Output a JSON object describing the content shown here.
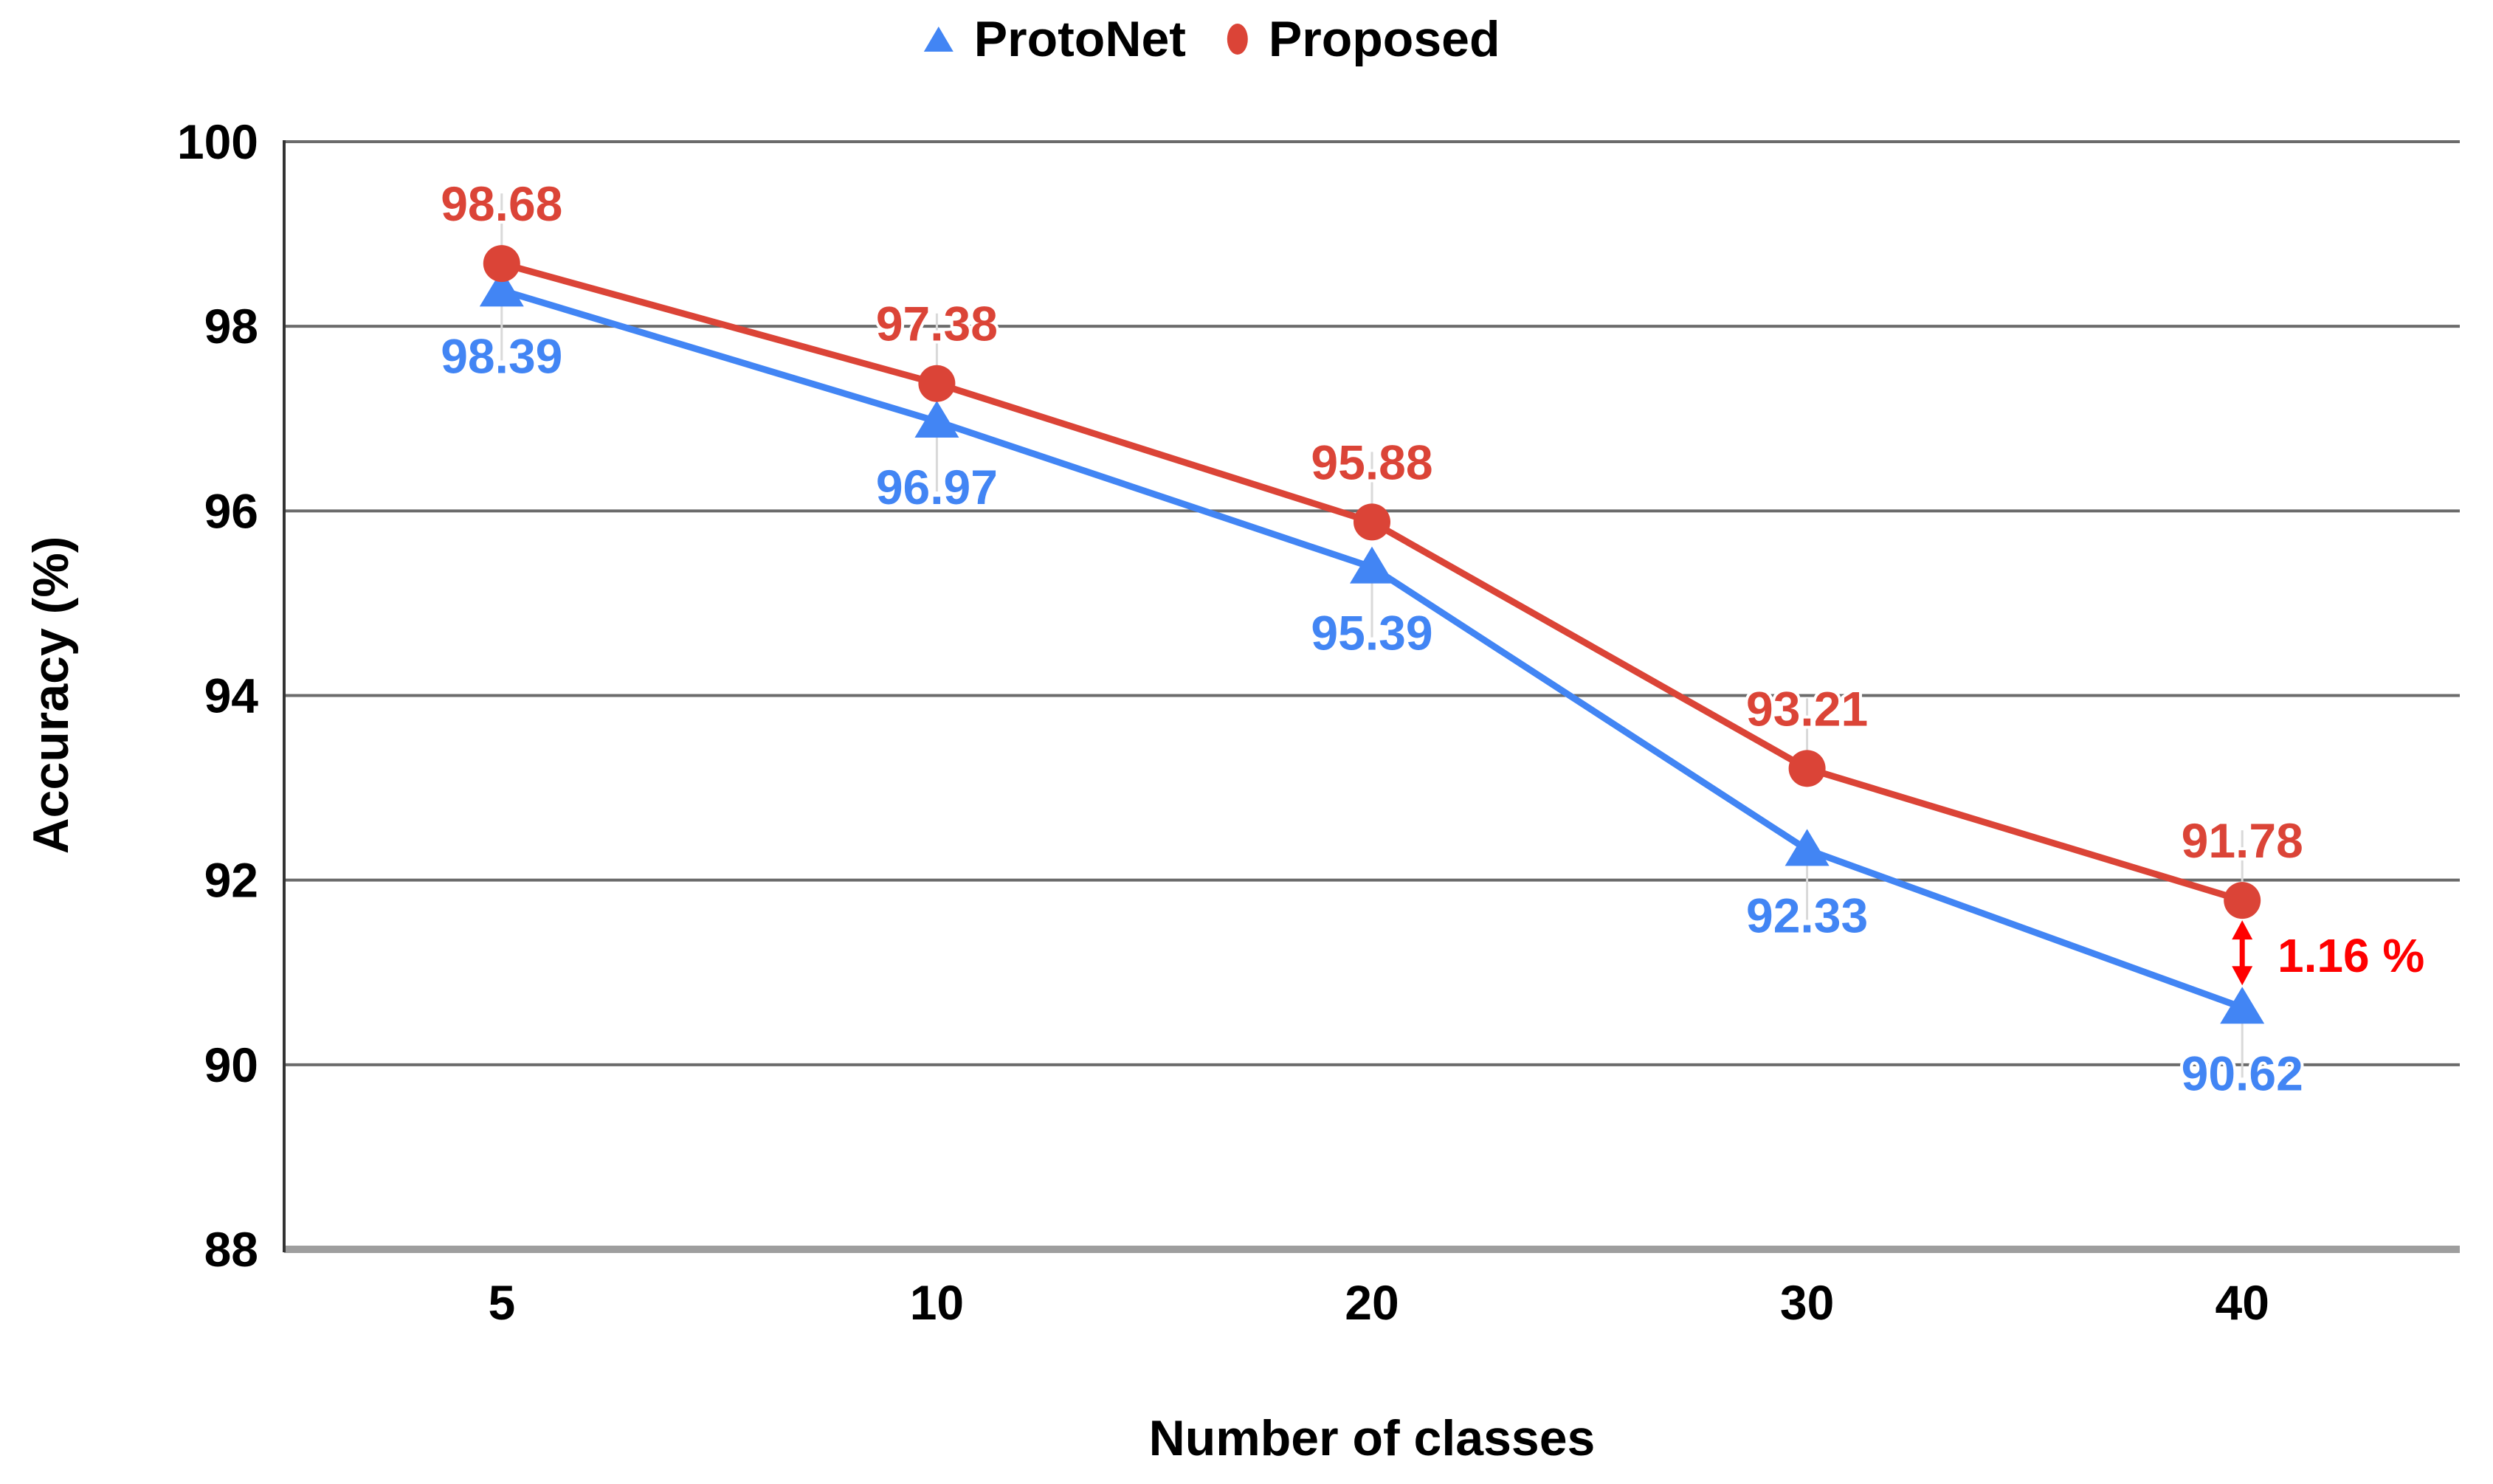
{
  "legend": {
    "items": [
      {
        "label": "ProtoNet",
        "marker": "triangle",
        "color": "#4285f4"
      },
      {
        "label": "Proposed",
        "marker": "circle",
        "color": "#db4437"
      }
    ]
  },
  "chart_data": {
    "type": "line",
    "title": "",
    "categories": [
      "5",
      "10",
      "20",
      "30",
      "40"
    ],
    "xlabel": "Number of classes",
    "ylabel": "Accuracy (%)",
    "ylim": [
      88,
      100
    ],
    "yticks": [
      88,
      90,
      92,
      94,
      96,
      98,
      100
    ],
    "grid": true,
    "legend_position": "top-center",
    "series": [
      {
        "name": "ProtoNet",
        "marker": "triangle",
        "color": "#4285f4",
        "label_position": "below",
        "values": [
          98.39,
          96.97,
          95.39,
          92.33,
          90.62
        ]
      },
      {
        "name": "Proposed",
        "marker": "circle",
        "color": "#db4437",
        "label_position": "above",
        "values": [
          98.68,
          97.38,
          95.88,
          93.21,
          91.78
        ]
      }
    ],
    "annotation": {
      "text": "1.16 %",
      "color": "#ff0000",
      "at_category": "40",
      "between_series": [
        "Proposed",
        "ProtoNet"
      ]
    },
    "style": {
      "gridline_color": "#6b6b6b",
      "bottom_axis_color": "#9e9e9e",
      "left_axis_color": "#333333",
      "leader_line_color": "#d9d9d9",
      "background": "#ffffff"
    }
  }
}
